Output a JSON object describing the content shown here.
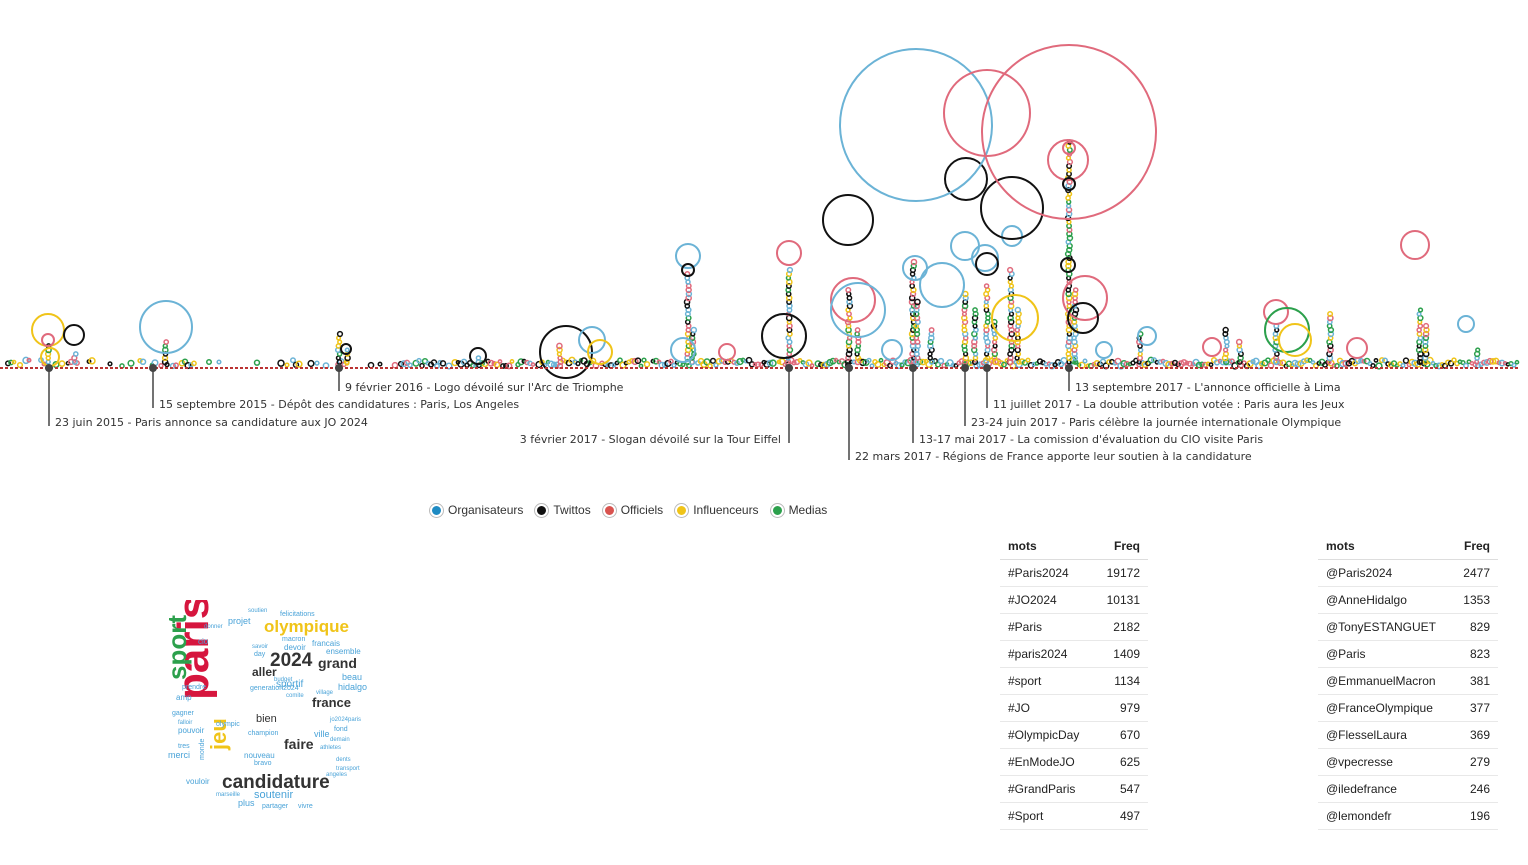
{
  "colors": {
    "organisateurs": "#1f8bc3",
    "twittos": "#111111",
    "officiels": "#d9534f",
    "influenceurs": "#f0c419",
    "medias": "#2ca04c",
    "orgs_bubble": "#6bb3d6",
    "officiels_bubble": "#e06a7c"
  },
  "legend": [
    {
      "label": "Organisateurs",
      "color": "#1f8bc3"
    },
    {
      "label": "Twittos",
      "color": "#111111"
    },
    {
      "label": "Officiels",
      "color": "#d9534f"
    },
    {
      "label": "Influenceurs",
      "color": "#f0c419"
    },
    {
      "label": "Medias",
      "color": "#2ca04c"
    }
  ],
  "events": [
    {
      "label": "23 juin 2015 - Paris annonce sa candidature aux JO 2024",
      "side": "right",
      "depth": 3
    },
    {
      "label": "15 septembre 2015 - Dépôt des candidatures : Paris, Los Angeles",
      "side": "right",
      "depth": 2
    },
    {
      "label": "9 février 2016 - Logo dévoilé sur l'Arc de Triomphe",
      "side": "right",
      "depth": 1
    },
    {
      "label": "3 février 2017 - Slogan dévoilé sur la Tour Eiffel",
      "side": "left",
      "depth": 4
    },
    {
      "label": "22 mars 2017 - Régions de France apporte leur soutien à la candidature",
      "side": "right",
      "depth": 5
    },
    {
      "label": "13-17 mai 2017 - La comission d'évaluation du CIO visite Paris",
      "side": "right",
      "depth": 4
    },
    {
      "label": "23-24 juin 2017 - Paris célèbre la journée internationale Olympique",
      "side": "right",
      "depth": 3
    },
    {
      "label": "11 juillet 2017 - La double attribution votée : Paris aura les Jeux",
      "side": "right",
      "depth": 2
    },
    {
      "label": "13 septembre 2017 - L'annonce officielle à Lima",
      "side": "right",
      "depth": 1
    }
  ],
  "hashtags": {
    "headers": {
      "word": "mots",
      "freq": "Freq"
    },
    "rows": [
      {
        "word": "#Paris2024",
        "freq": "19172"
      },
      {
        "word": "#JO2024",
        "freq": "10131"
      },
      {
        "word": "#Paris",
        "freq": "2182"
      },
      {
        "word": "#paris2024",
        "freq": "1409"
      },
      {
        "word": "#sport",
        "freq": "1134"
      },
      {
        "word": "#JO",
        "freq": "979"
      },
      {
        "word": "#OlympicDay",
        "freq": "670"
      },
      {
        "word": "#EnModeJO",
        "freq": "625"
      },
      {
        "word": "#GrandParis",
        "freq": "547"
      },
      {
        "word": "#Sport",
        "freq": "497"
      }
    ]
  },
  "mentions": {
    "headers": {
      "word": "mots",
      "freq": "Freq"
    },
    "rows": [
      {
        "word": "@Paris2024",
        "freq": "2477"
      },
      {
        "word": "@AnneHidalgo",
        "freq": "1353"
      },
      {
        "word": "@TonyESTANGUET",
        "freq": "829"
      },
      {
        "word": "@Paris",
        "freq": "823"
      },
      {
        "word": "@EmmanuelMacron",
        "freq": "381"
      },
      {
        "word": "@FranceOlympique",
        "freq": "377"
      },
      {
        "word": "@FlesselLaura",
        "freq": "369"
      },
      {
        "word": "@vpecresse",
        "freq": "279"
      },
      {
        "word": "@iledefrance",
        "freq": "246"
      },
      {
        "word": "@lemondefr",
        "freq": "196"
      }
    ]
  },
  "wordcloud": [
    {
      "text": "paris",
      "color": "#d6163e",
      "weight": 10
    },
    {
      "text": "sport",
      "color": "#2ca04c",
      "weight": 7
    },
    {
      "text": "jeu",
      "color": "#f0c419",
      "weight": 6
    },
    {
      "text": "candidature",
      "color": "#333333",
      "weight": 6
    },
    {
      "text": "olympique",
      "color": "#f0c419",
      "weight": 5
    },
    {
      "text": "2024",
      "color": "#333333",
      "weight": 5
    },
    {
      "text": "grand",
      "color": "#333333",
      "weight": 4
    },
    {
      "text": "france",
      "color": "#333333",
      "weight": 4
    },
    {
      "text": "faire",
      "color": "#333333",
      "weight": 4
    },
    {
      "text": "aller",
      "color": "#333333",
      "weight": 3
    },
    {
      "text": "bien",
      "color": "#333333",
      "weight": 3
    },
    {
      "text": "soutenir",
      "color": "#4aa3d8",
      "weight": 3
    },
    {
      "text": "sportif",
      "color": "#4aa3d8",
      "weight": 2
    },
    {
      "text": "beau",
      "color": "#4aa3d8",
      "weight": 2
    },
    {
      "text": "hidalgo",
      "color": "#4aa3d8",
      "weight": 2
    },
    {
      "text": "plus",
      "color": "#4aa3d8",
      "weight": 2
    },
    {
      "text": "merci",
      "color": "#4aa3d8",
      "weight": 2
    },
    {
      "text": "ville",
      "color": "#4aa3d8",
      "weight": 2
    },
    {
      "text": "projet",
      "color": "#4aa3d8",
      "weight": 2
    },
    {
      "text": "francais",
      "color": "#4aa3d8",
      "weight": 1
    },
    {
      "text": "ensemble",
      "color": "#4aa3d8",
      "weight": 1
    },
    {
      "text": "devoir",
      "color": "#4aa3d8",
      "weight": 1
    },
    {
      "text": "macron",
      "color": "#4aa3d8",
      "weight": 1
    },
    {
      "text": "felicitations",
      "color": "#4aa3d8",
      "weight": 1
    },
    {
      "text": "soutien",
      "color": "#4aa3d8",
      "weight": 1
    },
    {
      "text": "cio",
      "color": "#4aa3d8",
      "weight": 1
    },
    {
      "text": "amp",
      "color": "#4aa3d8",
      "weight": 1
    },
    {
      "text": "gagner",
      "color": "#4aa3d8",
      "weight": 1
    },
    {
      "text": "pouvoir",
      "color": "#4aa3d8",
      "weight": 1
    },
    {
      "text": "tres",
      "color": "#4aa3d8",
      "weight": 1
    },
    {
      "text": "vouloir",
      "color": "#4aa3d8",
      "weight": 1
    },
    {
      "text": "nouveau",
      "color": "#4aa3d8",
      "weight": 1
    },
    {
      "text": "champion",
      "color": "#4aa3d8",
      "weight": 1
    },
    {
      "text": "athletes",
      "color": "#4aa3d8",
      "weight": 1
    },
    {
      "text": "angeles",
      "color": "#4aa3d8",
      "weight": 1
    },
    {
      "text": "partager",
      "color": "#4aa3d8",
      "weight": 1
    },
    {
      "text": "vivre",
      "color": "#4aa3d8",
      "weight": 1
    },
    {
      "text": "marseille",
      "color": "#4aa3d8",
      "weight": 1
    },
    {
      "text": "generation2024",
      "color": "#4aa3d8",
      "weight": 1
    },
    {
      "text": "olympic",
      "color": "#4aa3d8",
      "weight": 1
    },
    {
      "text": "jo2024paris",
      "color": "#4aa3d8",
      "weight": 1
    },
    {
      "text": "fond",
      "color": "#4aa3d8",
      "weight": 1
    },
    {
      "text": "dents",
      "color": "#4aa3d8",
      "weight": 1
    },
    {
      "text": "bravo",
      "color": "#4aa3d8",
      "weight": 1
    },
    {
      "text": "day",
      "color": "#4aa3d8",
      "weight": 1
    },
    {
      "text": "demain",
      "color": "#4aa3d8",
      "weight": 1
    },
    {
      "text": "transport",
      "color": "#4aa3d8",
      "weight": 1
    },
    {
      "text": "monde",
      "color": "#4aa3d8",
      "weight": 1
    },
    {
      "text": "donner",
      "color": "#4aa3d8",
      "weight": 1
    },
    {
      "text": "prendre",
      "color": "#4aa3d8",
      "weight": 1
    },
    {
      "text": "falloir",
      "color": "#4aa3d8",
      "weight": 1
    },
    {
      "text": "comite",
      "color": "#4aa3d8",
      "weight": 1
    },
    {
      "text": "savoir",
      "color": "#4aa3d8",
      "weight": 1
    },
    {
      "text": "village",
      "color": "#4aa3d8",
      "weight": 1
    },
    {
      "text": "budget",
      "color": "#4aa3d8",
      "weight": 1
    }
  ]
}
